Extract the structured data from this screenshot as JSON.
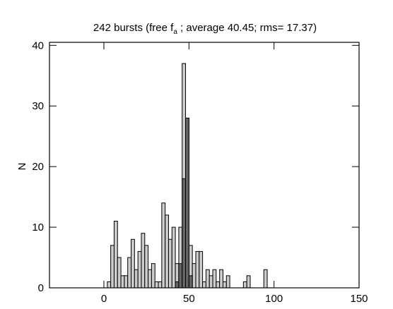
{
  "chart_data": {
    "type": "histogram",
    "title_parts": [
      "242 bursts (free f",
      "a",
      " ; average  40.45; rms= 17.37)"
    ],
    "ylabel": "N",
    "xlim": [
      -32,
      150
    ],
    "xticks": [
      0,
      50,
      100,
      150
    ],
    "ylim": [
      0,
      40.5
    ],
    "yticks": [
      0,
      10,
      20,
      30,
      40
    ],
    "series": [
      {
        "color": "#cccccc",
        "bins": [
          2,
          4,
          6,
          8,
          10,
          12,
          14,
          16,
          18,
          20,
          22,
          24,
          26,
          28,
          30,
          32,
          34,
          36,
          38,
          40,
          42,
          44,
          46,
          48,
          50,
          52,
          54,
          56,
          58,
          60,
          62,
          64,
          66,
          68,
          70,
          72,
          74,
          76,
          78,
          80,
          82,
          84,
          86,
          88,
          90,
          92,
          94,
          96
        ],
        "values": [
          1,
          7,
          11,
          5,
          2,
          2,
          5,
          8,
          3,
          6,
          9,
          7,
          3,
          4,
          1,
          1,
          14,
          12,
          8,
          10,
          4,
          10,
          37,
          28,
          7,
          4,
          6,
          6,
          1,
          3,
          2,
          3,
          1,
          3,
          1,
          2,
          0,
          0,
          0,
          0,
          1,
          2,
          0,
          0,
          0,
          0,
          3
        ]
      },
      {
        "color": "#666666",
        "bins": [
          42,
          44,
          46,
          48,
          50,
          52
        ],
        "values": [
          1,
          4,
          18,
          28,
          2
        ]
      }
    ]
  }
}
